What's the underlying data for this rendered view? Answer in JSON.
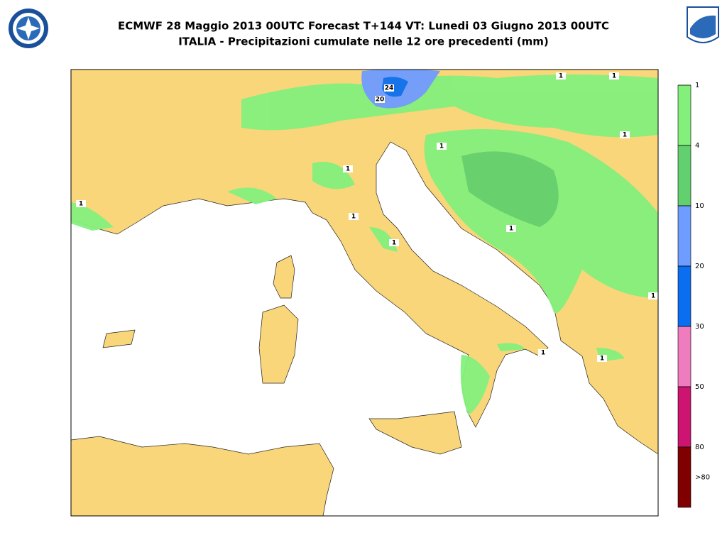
{
  "header": {
    "title": "ECMWF 28 Maggio 2013 00UTC Forecast T+144 VT: Lunedi 03 Giugno 2013 00UTC",
    "subtitle": "ITALIA - Precipitazioni cumulate nelle 12 ore precedenti (mm)"
  },
  "legend": {
    "ticks": [
      1,
      4,
      10,
      20,
      30,
      50,
      80
    ],
    "overflow_label": ">80",
    "colors": [
      "#84f07c",
      "#62d06e",
      "#6e9cff",
      "#0a6ef0",
      "#f07cc0",
      "#cc1470",
      "#800000"
    ]
  },
  "map": {
    "contour_labels": [
      1,
      1,
      1,
      1,
      1,
      1,
      1,
      1,
      1,
      1,
      1,
      1,
      24,
      20
    ]
  }
}
